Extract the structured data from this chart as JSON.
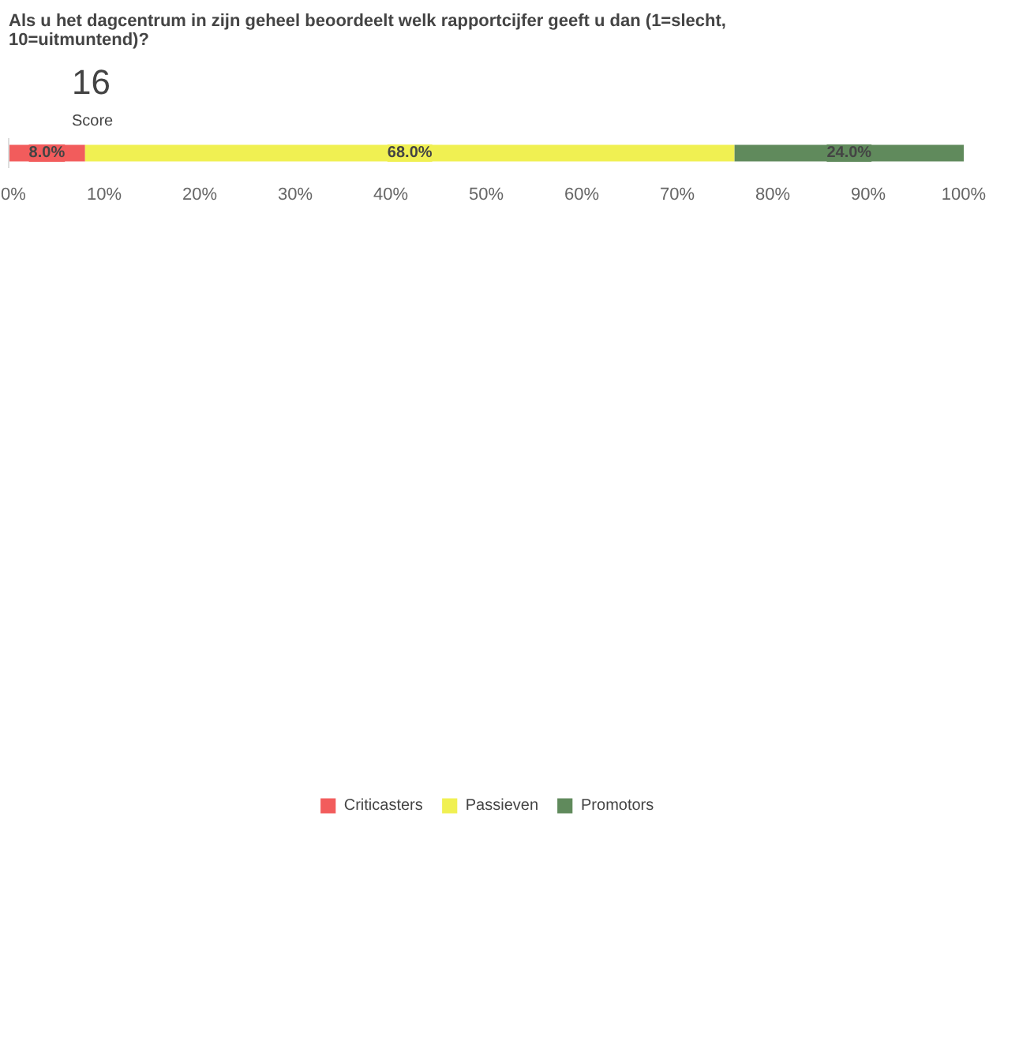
{
  "chart_data": {
    "type": "bar",
    "orientation": "horizontal",
    "stacked": true,
    "title": "Als u het dagcentrum in zijn geheel beoordeelt welk rapportcijfer geeft u dan (1=slecht, 10=uitmuntend)?",
    "annotations": [
      "16",
      "Score"
    ],
    "categories": [
      null
    ],
    "series": [
      {
        "name": "Criticasters",
        "color": "#f25c5c",
        "values": [
          8.0
        ],
        "value_labels": [
          "8.0%"
        ]
      },
      {
        "name": "Passieven",
        "color": "#f0f052",
        "values": [
          68.0
        ],
        "value_labels": [
          "68.0%"
        ]
      },
      {
        "name": "Promotors",
        "color": "#608a5c",
        "values": [
          24.0
        ],
        "value_labels": [
          "24.0%"
        ]
      }
    ],
    "xlim": [
      0,
      100
    ],
    "xticks": [
      {
        "value": 0,
        "label": "0%"
      },
      {
        "value": 10,
        "label": "10%"
      },
      {
        "value": 20,
        "label": "20%"
      },
      {
        "value": 30,
        "label": "30%"
      },
      {
        "value": 40,
        "label": "40%"
      },
      {
        "value": 50,
        "label": "50%"
      },
      {
        "value": 60,
        "label": "60%"
      },
      {
        "value": 70,
        "label": "70%"
      },
      {
        "value": 80,
        "label": "80%"
      },
      {
        "value": 90,
        "label": "90%"
      },
      {
        "value": 100,
        "label": "100%"
      }
    ],
    "legend": "bottom"
  }
}
